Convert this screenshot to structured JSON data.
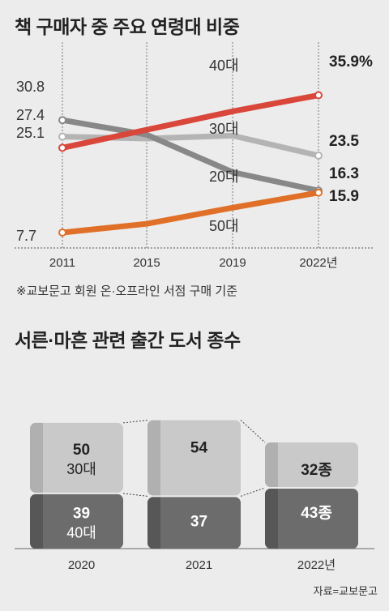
{
  "chart_data": [
    {
      "type": "line",
      "title": "책 구매자 중 주요 연령대 비중",
      "x": [
        "2011",
        "2015",
        "2019",
        "2022년"
      ],
      "series": [
        {
          "name": "40대",
          "color": "#d9463a",
          "values": [
            25.1,
            28.8,
            32.6,
            35.9
          ],
          "start_label": "25.1",
          "end_label": "35.9%"
        },
        {
          "name": "30대",
          "color": "#b4b4b4",
          "values": [
            27.4,
            27.0,
            27.6,
            23.5
          ],
          "start_label": "27.4",
          "end_label": "23.5"
        },
        {
          "name": "20대",
          "color": "#888888",
          "values": [
            30.8,
            27.8,
            20.1,
            16.3
          ],
          "start_label": "30.8",
          "end_label": "16.3"
        },
        {
          "name": "50대",
          "color": "#e07028",
          "values": [
            7.7,
            9.5,
            12.8,
            15.9
          ],
          "start_label": "7.7",
          "end_label": "15.9"
        }
      ],
      "note": "※교보문고 회원 온·오프라인 서점 구매 기준"
    },
    {
      "type": "bar",
      "title": "서른·마흔 관련 출간 도서 종수",
      "categories": [
        "2020",
        "2021",
        "2022년"
      ],
      "series": [
        {
          "name": "40대",
          "values": [
            39,
            37,
            43
          ],
          "labels": [
            "39",
            "37",
            "43종"
          ],
          "color": "#6c6c6c",
          "side_color": "#575757"
        },
        {
          "name": "30대",
          "values": [
            50,
            54,
            32
          ],
          "labels": [
            "50",
            "54",
            "32종"
          ],
          "color": "#c9c9c9",
          "side_color": "#b0b0b0"
        }
      ],
      "segment_tags": {
        "30대": "30대",
        "40대": "40대"
      },
      "source": "자료=교보문고"
    }
  ]
}
